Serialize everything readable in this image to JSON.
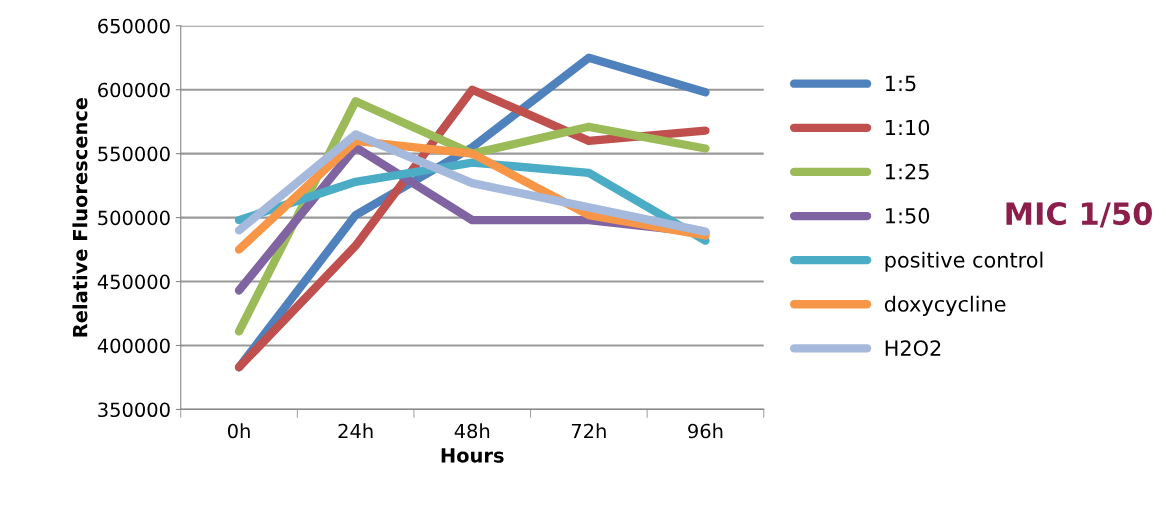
{
  "chart_data": {
    "type": "line",
    "xlabel": "Hours",
    "ylabel": "Relative Fluorescence",
    "categories": [
      "0h",
      "24h",
      "48h",
      "72h",
      "96h"
    ],
    "series": [
      {
        "name": "1:5",
        "color": "#4f81bd",
        "values": [
          383000,
          502000,
          555000,
          625000,
          598000
        ]
      },
      {
        "name": "1:10",
        "color": "#c0504d",
        "values": [
          383000,
          478000,
          600000,
          560000,
          568000
        ]
      },
      {
        "name": "1:25",
        "color": "#9bbb59",
        "values": [
          411000,
          591000,
          550000,
          571000,
          554000
        ]
      },
      {
        "name": "1:50",
        "color": "#8064a2",
        "values": [
          443000,
          555000,
          498000,
          498000,
          488000
        ]
      },
      {
        "name": "positive control",
        "color": "#4bacc6",
        "values": [
          498000,
          528000,
          543000,
          535000,
          482000
        ]
      },
      {
        "name": "doxycycline",
        "color": "#f79646",
        "values": [
          475000,
          560000,
          550000,
          502000,
          486000
        ]
      },
      {
        "name": "H2O2",
        "color": "#a5b9dc",
        "values": [
          490000,
          565000,
          527000,
          508000,
          489000
        ]
      }
    ],
    "ylim": [
      350000,
      650000
    ],
    "yticks": [
      350000,
      400000,
      450000,
      500000,
      550000,
      600000,
      650000
    ],
    "grid": "y",
    "legend": "right",
    "marker": "none",
    "line_style": "solid",
    "annotations": [
      "MIC 1/50"
    ]
  }
}
